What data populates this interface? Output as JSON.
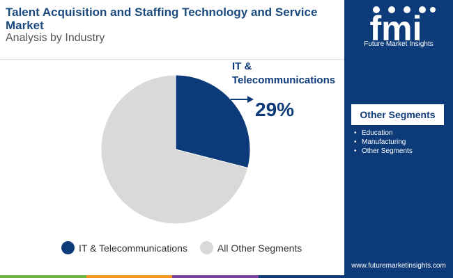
{
  "header": {
    "title": "Talent Acquisition and Staffing Technology and Service Market",
    "subtitle": "Analysis by Industry"
  },
  "chart_data": {
    "type": "pie",
    "title": "Talent Acquisition and Staffing Technology and Service Market",
    "subtitle": "Analysis by Industry",
    "categories": [
      "IT & Telecommunications",
      "All Other Segments"
    ],
    "values": [
      29,
      71
    ],
    "colors": [
      "#0d3a78",
      "#d9d9d9"
    ],
    "highlight": {
      "label": "IT & Telecommunications",
      "value_label": "29%"
    },
    "legend_position": "bottom"
  },
  "sidebar": {
    "brand_name": "Future Market Insights",
    "logo_text": "fmi",
    "segments_title": "Other Segments",
    "segments": [
      "Education",
      "Manufacturing",
      "Other Segments"
    ],
    "website": "www.futuremarketinsights.com",
    "background_color": "#0d3a78"
  },
  "footer_bar_colors": [
    "#6cb33f",
    "#f7941d",
    "#7b3f9e",
    "#0d3a78"
  ]
}
